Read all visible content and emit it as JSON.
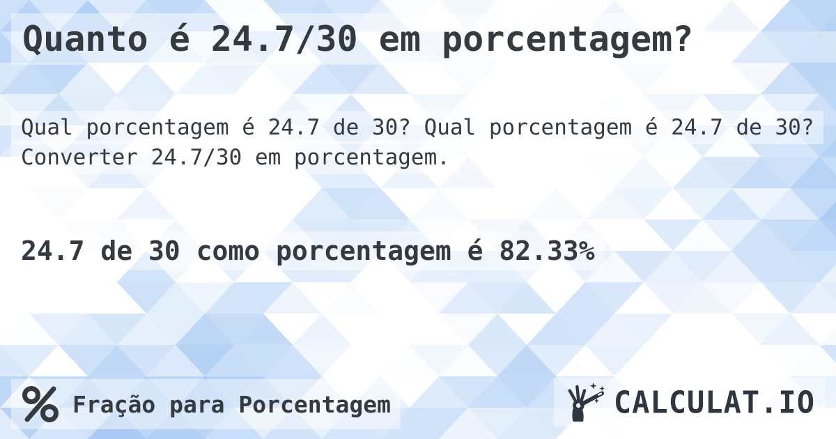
{
  "page": {
    "title": "Quanto é 24.7/30 em porcentagem?",
    "description": "Qual porcentagem é 24.7 de 30? Qual porcentagem é 24.7 de 30? Converter 24.7/30 em porcentagem.",
    "answer": "24.7 de 30 como porcentagem é 82.33%"
  },
  "footer": {
    "category": {
      "icon": "percent-icon",
      "label": "Fração para Porcentagem"
    },
    "brand": {
      "icon": "magic-wand-hand-icon",
      "name": "CALCULAT.IO"
    }
  },
  "colors": {
    "text": "#343a40",
    "brand_text": "#2f3640",
    "pattern_blue": "#9dc3f2",
    "pattern_white": "#ffffff",
    "text_highlight": "rgba(255,255,255,0.45)"
  }
}
